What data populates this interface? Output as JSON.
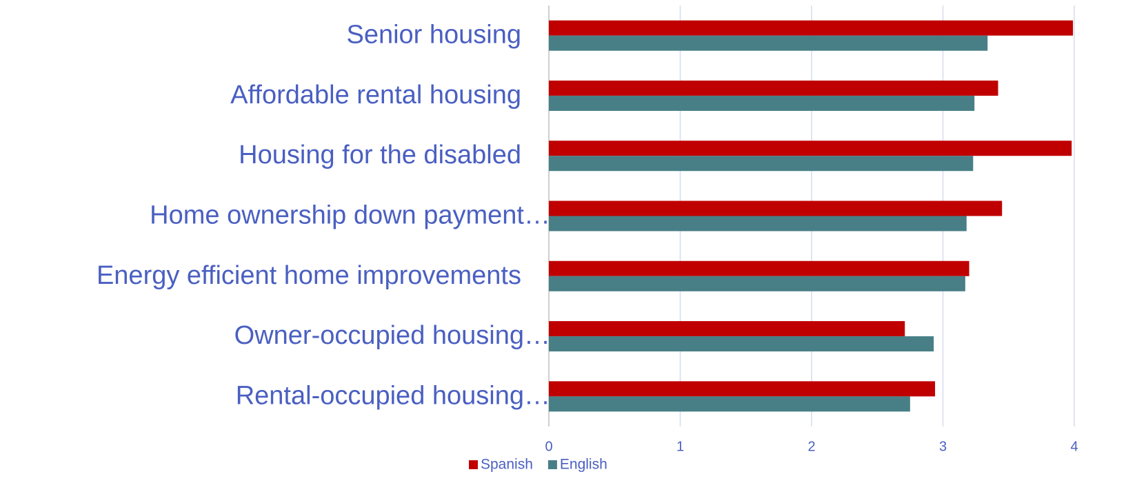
{
  "chart_data": {
    "type": "hbar",
    "categories": [
      "Senior housing",
      "Affordable rental housing",
      "Housing for the disabled",
      "Home ownership down payment…",
      "Energy efficient home improvements",
      "Owner-occupied housing…",
      "Rental-occupied housing…"
    ],
    "series": [
      {
        "name": "Spanish",
        "color": "#c00000",
        "values": [
          3.99,
          3.42,
          3.98,
          3.45,
          3.2,
          2.71,
          2.94
        ]
      },
      {
        "name": "English",
        "color": "#487f87",
        "values": [
          3.34,
          3.24,
          3.23,
          3.18,
          3.17,
          2.93,
          2.75
        ]
      }
    ],
    "xlim": [
      0,
      4
    ],
    "xticks": [
      0,
      1,
      2,
      3,
      4
    ],
    "grid": true
  }
}
